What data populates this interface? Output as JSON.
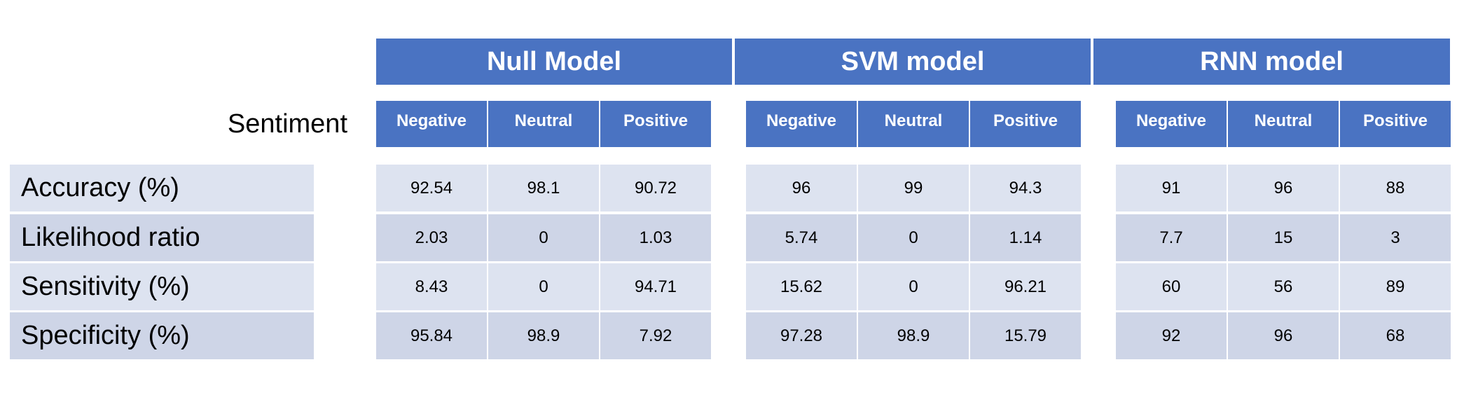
{
  "chart_data": {
    "type": "table",
    "row_header_label": "Sentiment",
    "colors": {
      "header_bg": "#4a73c2",
      "header_text": "#ffffff",
      "row_bg_odd": "#dde3f0",
      "row_bg_even": "#ced5e7"
    },
    "columns": [
      "Negative",
      "Neutral",
      "Positive"
    ],
    "rows": [
      "Accuracy (%)",
      "Likelihood ratio",
      "Sensitivity (%)",
      "Specificity (%)"
    ],
    "models": [
      {
        "name": "Null Model",
        "values": [
          [
            "92.54",
            "98.1",
            "90.72"
          ],
          [
            "2.03",
            "0",
            "1.03"
          ],
          [
            "8.43",
            "0",
            "94.71"
          ],
          [
            "95.84",
            "98.9",
            "7.92"
          ]
        ]
      },
      {
        "name": "SVM model",
        "values": [
          [
            "96",
            "99",
            "94.3"
          ],
          [
            "5.74",
            "0",
            "1.14"
          ],
          [
            "15.62",
            "0",
            "96.21"
          ],
          [
            "97.28",
            "98.9",
            "15.79"
          ]
        ]
      },
      {
        "name": "RNN model",
        "values": [
          [
            "91",
            "96",
            "88"
          ],
          [
            "7.7",
            "15",
            "3"
          ],
          [
            "60",
            "56",
            "89"
          ],
          [
            "92",
            "96",
            "68"
          ]
        ]
      }
    ]
  }
}
